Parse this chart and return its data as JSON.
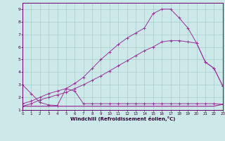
{
  "xlabel": "Windchill (Refroidissement éolien,°C)",
  "bg_color": "#cce8e8",
  "line_color": "#993399",
  "grid_color": "#aacccc",
  "xlim": [
    0,
    23
  ],
  "ylim": [
    1,
    9.5
  ],
  "xtick_labels": [
    "0",
    "1",
    "2",
    "3",
    "4",
    "5",
    "6",
    "7",
    "8",
    "9",
    "10",
    "11",
    "12",
    "13",
    "14",
    "15",
    "16",
    "17",
    "18",
    "19",
    "20",
    "21",
    "22",
    "23"
  ],
  "ytick_labels": [
    "1",
    "2",
    "3",
    "4",
    "5",
    "6",
    "7",
    "8",
    "9"
  ],
  "series1_x": [
    0,
    1,
    2,
    3,
    4,
    5,
    6,
    7,
    8,
    9,
    10,
    11,
    12,
    13,
    14,
    15,
    16,
    17,
    18,
    19,
    20,
    21,
    22,
    23
  ],
  "series1_y": [
    3.0,
    2.3,
    1.6,
    1.4,
    1.35,
    2.7,
    2.5,
    1.5,
    1.5,
    1.5,
    1.5,
    1.5,
    1.5,
    1.5,
    1.5,
    1.5,
    1.5,
    1.5,
    1.5,
    1.5,
    1.5,
    1.5,
    1.5,
    1.45
  ],
  "series2_x": [
    0,
    1,
    2,
    3,
    4,
    5,
    6,
    7,
    8,
    9,
    10,
    11,
    12,
    13,
    14,
    15,
    16,
    17,
    18,
    19,
    20,
    21,
    22,
    23
  ],
  "series2_y": [
    1.3,
    1.3,
    1.3,
    1.3,
    1.3,
    1.3,
    1.3,
    1.3,
    1.3,
    1.3,
    1.3,
    1.3,
    1.3,
    1.3,
    1.3,
    1.3,
    1.3,
    1.3,
    1.3,
    1.3,
    1.3,
    1.3,
    1.3,
    1.45
  ],
  "series3_x": [
    0,
    1,
    2,
    3,
    4,
    5,
    6,
    7,
    8,
    9,
    10,
    11,
    12,
    13,
    14,
    15,
    16,
    17,
    18,
    19,
    20,
    21,
    22,
    23
  ],
  "series3_y": [
    1.3,
    1.5,
    1.8,
    2.0,
    2.2,
    2.4,
    2.7,
    3.0,
    3.35,
    3.7,
    4.1,
    4.5,
    4.9,
    5.3,
    5.7,
    6.0,
    6.4,
    6.5,
    6.5,
    6.4,
    6.3,
    4.8,
    4.3,
    2.9
  ],
  "series4_x": [
    0,
    1,
    2,
    3,
    4,
    5,
    6,
    7,
    8,
    9,
    10,
    11,
    12,
    13,
    14,
    15,
    16,
    17,
    18,
    19,
    20,
    21,
    22,
    23
  ],
  "series4_y": [
    1.5,
    1.7,
    2.0,
    2.3,
    2.5,
    2.7,
    3.1,
    3.6,
    4.3,
    5.0,
    5.6,
    6.2,
    6.7,
    7.1,
    7.5,
    8.65,
    9.0,
    9.0,
    8.3,
    7.5,
    6.3,
    4.8,
    4.3,
    2.9
  ]
}
